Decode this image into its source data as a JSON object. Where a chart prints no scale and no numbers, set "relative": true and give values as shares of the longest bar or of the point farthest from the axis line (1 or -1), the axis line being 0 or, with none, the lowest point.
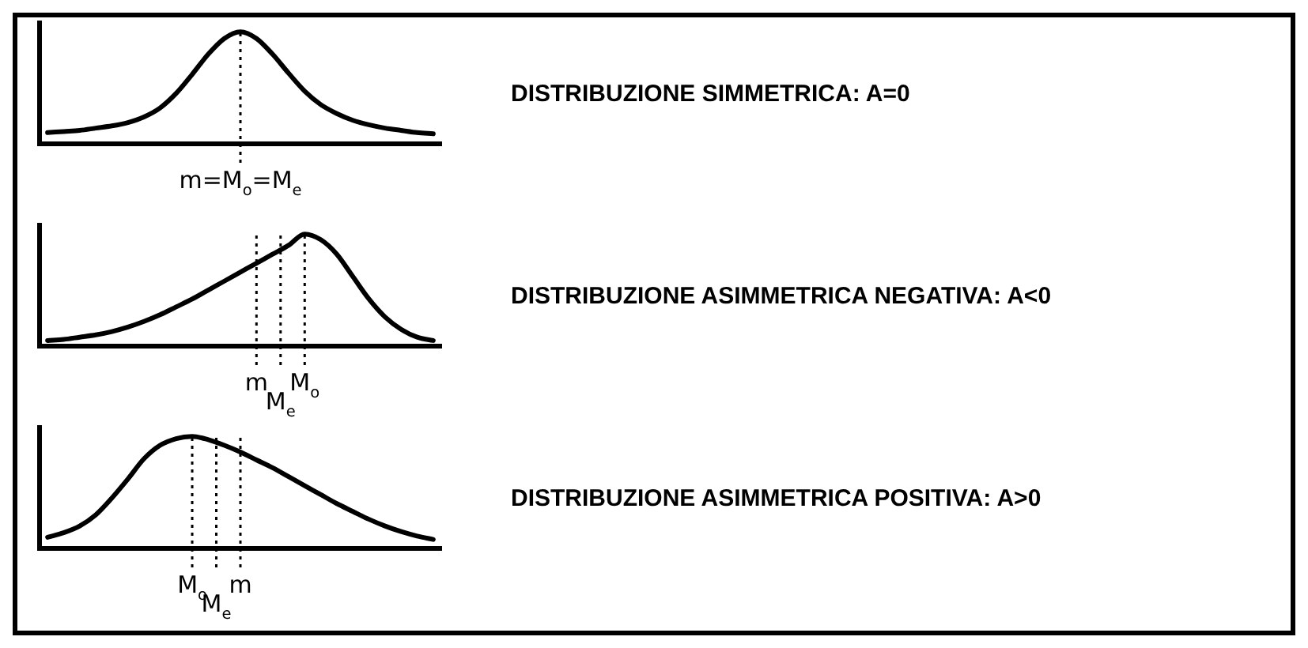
{
  "chart_data": [
    {
      "type": "line",
      "relative": true,
      "categories": [
        null,
        null,
        null,
        null,
        null,
        null,
        null,
        null,
        null,
        null,
        null,
        null,
        null,
        null,
        null,
        null,
        null,
        null,
        null,
        null,
        null,
        null,
        null,
        null,
        null
      ],
      "series": [
        {
          "color": "#000000",
          "values": [
            0.1,
            0.11,
            0.12,
            0.14,
            0.16,
            0.19,
            0.24,
            0.32,
            0.45,
            0.62,
            0.8,
            0.94,
            1,
            0.94,
            0.8,
            0.63,
            0.47,
            0.35,
            0.27,
            0.21,
            0.17,
            0.14,
            0.12,
            0.1,
            0.09
          ]
        }
      ],
      "annotations": [
        "DISTRIBUZIONE SIMMETRICA: A=0",
        "m=M$_{o}$=M$_{e}$"
      ]
    },
    {
      "type": "line",
      "relative": true,
      "categories": [
        null,
        null,
        null,
        null,
        null,
        null,
        null,
        null,
        null,
        null,
        null,
        null,
        null,
        null,
        null,
        null,
        null,
        null,
        null,
        null,
        null,
        null,
        null,
        null,
        null
      ],
      "series": [
        {
          "color": "#000000",
          "values": [
            0.05,
            0.06,
            0.08,
            0.1,
            0.13,
            0.17,
            0.22,
            0.28,
            0.35,
            0.42,
            0.5,
            0.58,
            0.66,
            0.74,
            0.82,
            0.9,
            1,
            0.95,
            0.82,
            0.62,
            0.42,
            0.26,
            0.15,
            0.08,
            0.05
          ]
        }
      ],
      "annotations": [
        "DISTRIBUZIONE ASIMMETRICA NEGATIVA: A<0",
        "m",
        "M$_{e}$",
        "M$_{o}$"
      ]
    },
    {
      "type": "line",
      "relative": true,
      "categories": [
        null,
        null,
        null,
        null,
        null,
        null,
        null,
        null,
        null,
        null,
        null,
        null,
        null,
        null,
        null,
        null,
        null,
        null,
        null,
        null,
        null,
        null,
        null,
        null,
        null
      ],
      "series": [
        {
          "color": "#000000",
          "values": [
            0.1,
            0.14,
            0.2,
            0.3,
            0.45,
            0.62,
            0.8,
            0.92,
            0.98,
            1,
            0.97,
            0.92,
            0.86,
            0.79,
            0.72,
            0.64,
            0.56,
            0.48,
            0.4,
            0.33,
            0.26,
            0.2,
            0.15,
            0.11,
            0.08
          ]
        }
      ],
      "annotations": [
        "DISTRIBUZIONE ASIMMETRICA POSITIVA: A>0",
        "M$_{o}$",
        "M$_{e}$",
        "m"
      ]
    }
  ]
}
